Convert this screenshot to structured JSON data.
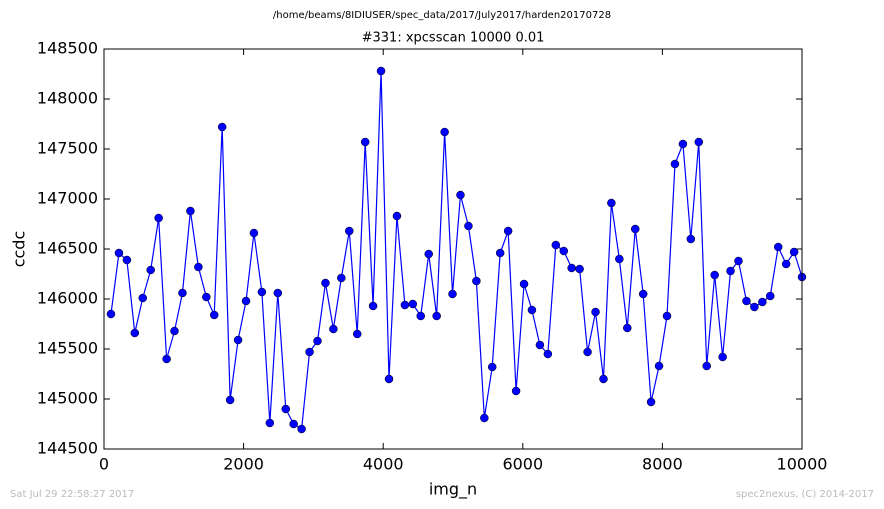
{
  "chart_data": {
    "type": "line",
    "suptitle": "/home/beams/8IDIUSER/spec_data/2017/July2017/harden20170728",
    "title": "#331: xpcsscan 10000 0.01",
    "x_label": "img_n",
    "y_label": "ccdc",
    "footer_left": "Sat Jul 29 22:58:27 2017",
    "footer_right": "spec2nexus, (C) 2014-2017",
    "xlim": [
      0,
      10000
    ],
    "xticks": [
      0,
      2000,
      4000,
      6000,
      8000,
      10000
    ],
    "ylim": [
      144500,
      148500
    ],
    "yticks": [
      144500,
      145000,
      145500,
      146000,
      146500,
      147000,
      147500,
      148000,
      148500
    ],
    "x": [
      100,
      214,
      328,
      441,
      555,
      669,
      783,
      897,
      1010,
      1124,
      1238,
      1352,
      1466,
      1579,
      1693,
      1807,
      1921,
      2035,
      2148,
      2262,
      2376,
      2490,
      2604,
      2717,
      2831,
      2945,
      3059,
      3173,
      3286,
      3400,
      3514,
      3628,
      3742,
      3855,
      3969,
      4083,
      4197,
      4311,
      4424,
      4538,
      4652,
      4766,
      4880,
      4993,
      5107,
      5221,
      5335,
      5449,
      5562,
      5676,
      5790,
      5904,
      6018,
      6131,
      6245,
      6359,
      6473,
      6587,
      6700,
      6814,
      6928,
      7042,
      7156,
      7269,
      7383,
      7497,
      7611,
      7725,
      7838,
      7952,
      8066,
      8180,
      8294,
      8407,
      8521,
      8635,
      8749,
      8863,
      8976,
      9090,
      9204,
      9318,
      9432,
      9545,
      9659,
      9773,
      9887,
      10000
    ],
    "series": [
      {
        "color": "#0000ff",
        "values": [
          145850,
          146460,
          146390,
          145660,
          146010,
          146290,
          146810,
          145400,
          145680,
          146060,
          146880,
          146320,
          146020,
          145840,
          147720,
          144990,
          145590,
          145980,
          146660,
          146070,
          144760,
          146060,
          144900,
          144750,
          144700,
          145470,
          145580,
          146160,
          145700,
          146210,
          146680,
          145650,
          147570,
          145930,
          148280,
          145200,
          146830,
          145940,
          145950,
          145830,
          146450,
          145830,
          147670,
          146050,
          147040,
          146730,
          146180,
          144810,
          145320,
          146460,
          146680,
          145080,
          146150,
          145890,
          145540,
          145450,
          146540,
          146480,
          146310,
          146300,
          145470,
          145870,
          145200,
          146960,
          146400,
          145710,
          146700,
          146050,
          144970,
          145330,
          145830,
          147350,
          147550,
          146600,
          147570,
          145330,
          146240,
          145420,
          146280,
          146380,
          145980,
          145920,
          145970,
          146030,
          146520,
          146350,
          146470,
          146220
        ]
      }
    ]
  }
}
